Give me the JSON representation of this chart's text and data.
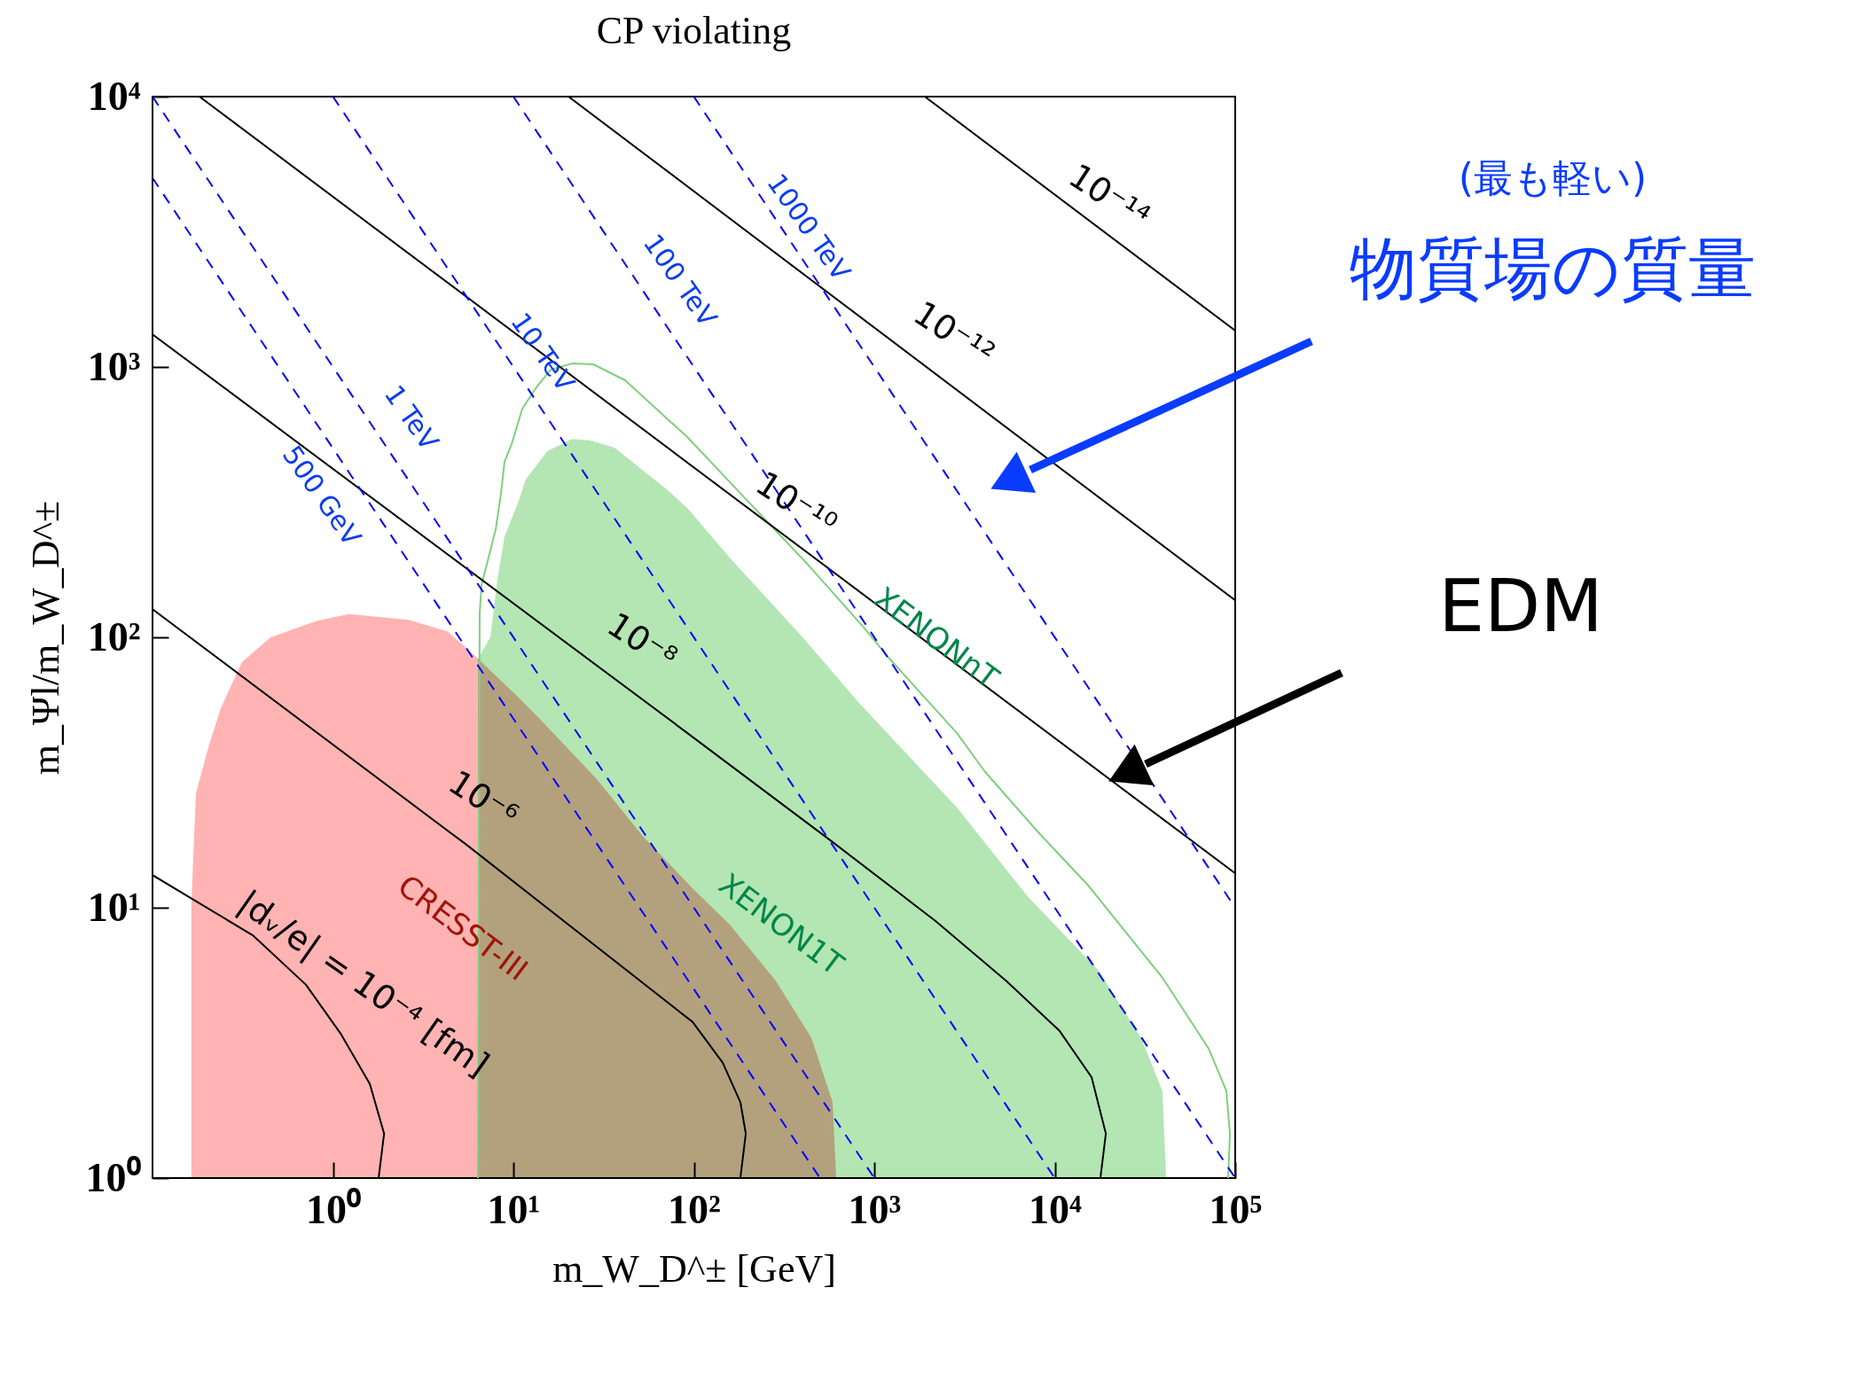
{
  "chart_data": {
    "type": "line",
    "title": "CP violating",
    "xlabel": "m_W_D^± [GeV]",
    "ylabel": "m_Ψl/m_W_D^±",
    "log": "xy",
    "grid": false,
    "line_style": "solid",
    "xlim": [
      0.1,
      100000
    ],
    "ylim": [
      1,
      10000
    ],
    "xticks": [
      {
        "value": 1,
        "label": "10⁰"
      },
      {
        "value": 10,
        "label": "10¹"
      },
      {
        "value": 100,
        "label": "10²"
      },
      {
        "value": 1000,
        "label": "10³"
      },
      {
        "value": 10000,
        "label": "10⁴"
      },
      {
        "value": 100000,
        "label": "10⁵"
      }
    ],
    "yticks": [
      {
        "value": 1,
        "label": "10⁰"
      },
      {
        "value": 10,
        "label": "10¹"
      },
      {
        "value": 100,
        "label": "10²"
      },
      {
        "value": 1000,
        "label": "10³"
      },
      {
        "value": 10000,
        "label": "10⁴"
      }
    ],
    "series": [
      {
        "type": "area",
        "color": "#ffb3b3",
        "x": [
          0.164,
          0.174,
          0.204,
          0.239,
          0.313,
          0.451,
          0.811,
          1.22,
          2.63,
          4.33,
          6.36,
          10.7,
          14.0,
          29.0,
          52.1,
          99.5,
          158,
          285,
          448,
          587,
          615
        ],
        "values": [
          10.2,
          26.5,
          39.2,
          54.7,
          80.9,
          100,
          115,
          122,
          116,
          105,
          83.4,
          59.8,
          49.9,
          29.9,
          18.4,
          11.7,
          8.67,
          5.35,
          3.3,
          1.91,
          1
        ]
      },
      {
        "type": "area",
        "color": "#b3e6b3",
        "x": [
          6.36,
          7.45,
          8.16,
          8.93,
          10.7,
          11.7,
          15.4,
          21.1,
          26.5,
          36.3,
          71.6,
          91.9,
          158,
          391,
          807,
          1520,
          2864,
          7080,
          17500,
          30100,
          39500,
          41400
        ],
        "values": [
          83.4,
          100,
          165,
          236,
          320,
          383,
          488,
          542,
          535,
          503,
          350,
          301,
          197,
          102,
          58.1,
          36.9,
          23.5,
          11.0,
          5.85,
          3.3,
          2.1,
          1
        ]
      },
      {
        "color": "#7fcf7f",
        "x": [
          6.36,
          6.5,
          6.65,
          7.12,
          7.98,
          8.53,
          8.93,
          9.78,
          11.2,
          13.4,
          16.1,
          21.1,
          27.7,
          41.6,
          71.6,
          91.9,
          198,
          428,
          883,
          1213,
          2864,
          4110,
          8110,
          15300,
          39500,
          71300,
          89300,
          93500,
          91400
        ],
        "values": [
          1,
          122,
          155,
          186,
          251,
          340,
          446,
          519,
          701,
          841,
          977,
          1030,
          1023,
          893,
          641,
          551,
          320,
          186,
          108,
          83.4,
          44.3,
          31.8,
          19.0,
          12.1,
          5.51,
          3.01,
          2.1,
          1.46,
          1
        ]
      },
      {
        "color": "#000000",
        "x": [
          0.1,
          0.359,
          0.708,
          1.11,
          1.6,
          1.92,
          1.79
        ],
        "values": [
          13.2,
          7.91,
          5.19,
          3.4,
          2.23,
          1.46,
          1
        ]
      },
      {
        "color": "#000000",
        "x": [
          0.1,
          5.43,
          98.4,
          144.5,
          181,
          194,
          181
        ],
        "values": [
          127,
          17.2,
          3.78,
          2.67,
          1.91,
          1.46,
          1
        ]
      },
      {
        "color": "#000000",
        "x": [
          0.1,
          91.9,
          561,
          2183,
          5395,
          10640,
          16000,
          19190,
          17900
        ],
        "values": [
          1320,
          44.3,
          17.9,
          8.93,
          5.35,
          3.5,
          2.36,
          1.46,
          1
        ]
      },
      {
        "color": "#000000",
        "x": [
          0.182,
          100000
        ],
        "values": [
          10000,
          13.4
        ]
      },
      {
        "color": "#000000",
        "x": [
          20.2,
          100000
        ],
        "values": [
          10000,
          137
        ]
      },
      {
        "color": "#000000",
        "x": [
          1905,
          100000
        ],
        "values": [
          10000,
          1362
        ]
      },
      {
        "color": "#0000ff",
        "line_style": "dashed",
        "x": [
          0.1,
          500
        ],
        "values": [
          5000,
          1
        ]
      },
      {
        "color": "#0000ff",
        "line_style": "dashed",
        "x": [
          0.1,
          1000
        ],
        "values": [
          10000,
          1
        ]
      },
      {
        "color": "#0000ff",
        "line_style": "dashed",
        "x": [
          1,
          10000
        ],
        "values": [
          10000,
          1
        ]
      },
      {
        "color": "#0000ff",
        "line_style": "dashed",
        "x": [
          10,
          100000
        ],
        "values": [
          10000,
          1
        ]
      },
      {
        "color": "#0000ff",
        "line_style": "dashed",
        "x": [
          100,
          100000
        ],
        "values": [
          10000,
          10
        ]
      }
    ],
    "annotations": [
      "10⁻¹⁴",
      "10⁻¹²",
      "10⁻¹⁰",
      "10⁻⁸",
      "10⁻⁶",
      "|dᵥ/e| = 10⁻⁴ [fm]",
      "CRESST-III",
      "XENON1T",
      "XENONnT",
      "500 GeV",
      "1 TeV",
      "10 TeV",
      "100 TeV",
      "1000 TeV",
      "(最も軽い)",
      "物質場の質量",
      "EDM"
    ]
  }
}
